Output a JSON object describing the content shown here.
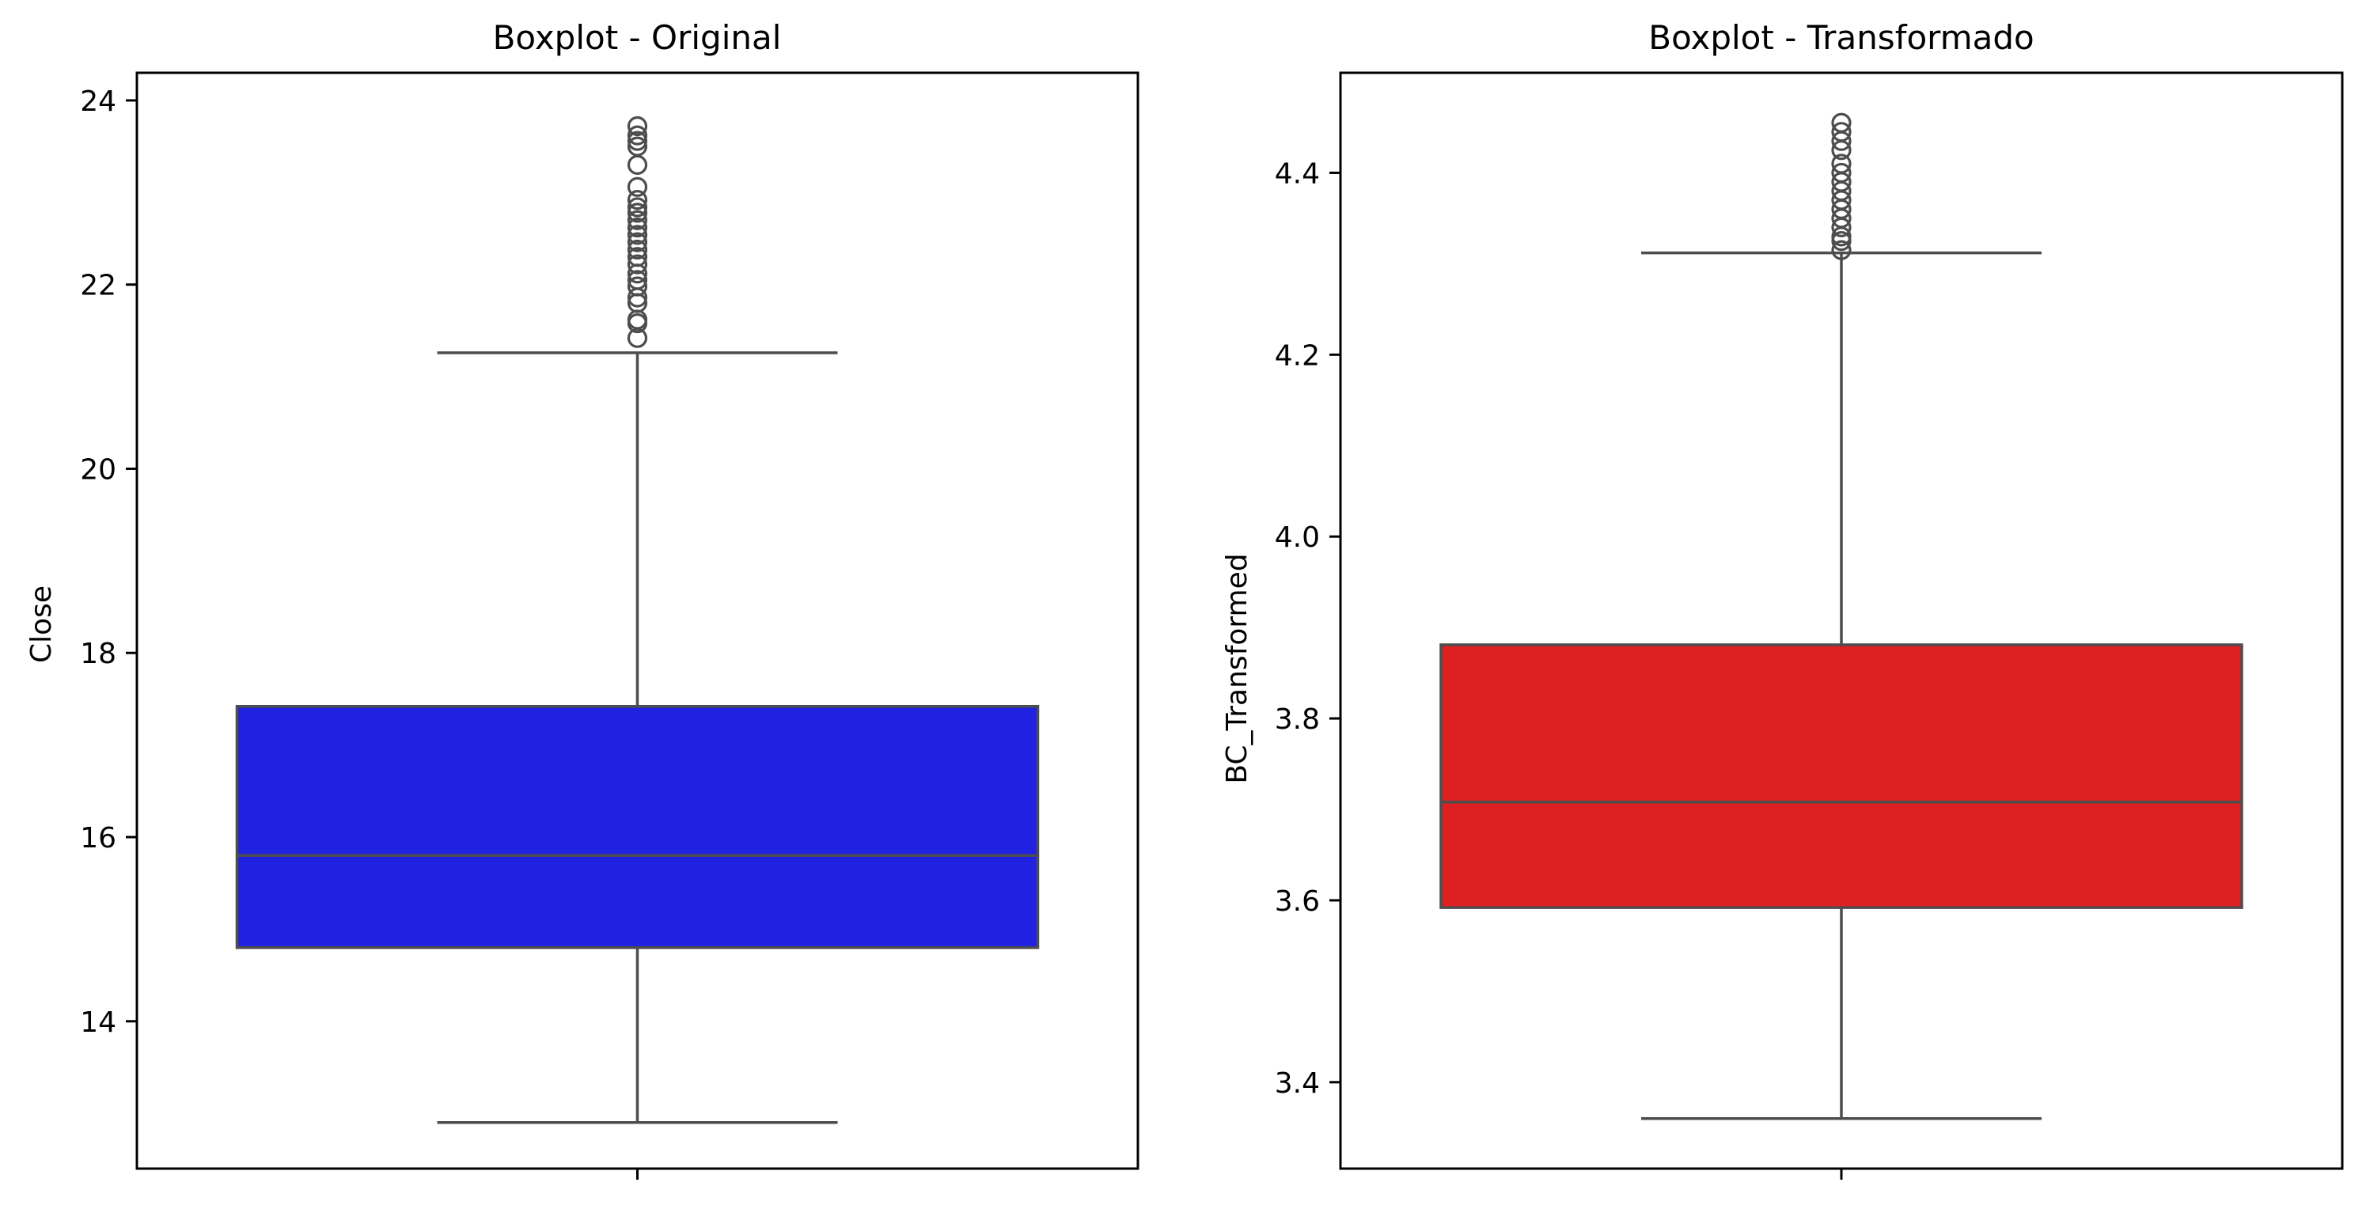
{
  "chart_data": [
    {
      "type": "boxplot",
      "title": "Boxplot - Original",
      "xlabel": "",
      "ylabel": "Close",
      "ylim": [
        12.4,
        24.3
      ],
      "yticks": [
        14,
        16,
        18,
        20,
        22,
        24
      ],
      "ytick_labels": [
        "14",
        "16",
        "18",
        "20",
        "22",
        "24"
      ],
      "box_color": "#2022e2",
      "line_color": "#4d4d4d",
      "grid": false,
      "box": {
        "whisker_low": 12.9,
        "q1": 14.8,
        "median": 15.8,
        "q3": 17.42,
        "whisker_high": 21.26
      },
      "outliers": [
        21.42,
        21.58,
        21.62,
        21.8,
        21.86,
        21.98,
        22.05,
        22.12,
        22.22,
        22.3,
        22.38,
        22.46,
        22.54,
        22.62,
        22.7,
        22.78,
        22.84,
        22.92,
        23.06,
        23.3,
        23.5,
        23.56,
        23.62,
        23.72
      ]
    },
    {
      "type": "boxplot",
      "title": "Boxplot - Transformado",
      "xlabel": "",
      "ylabel": "BC_Transformed",
      "ylim": [
        3.305,
        4.51
      ],
      "yticks": [
        3.4,
        3.6,
        3.8,
        4.0,
        4.2,
        4.4
      ],
      "ytick_labels": [
        "3.4",
        "3.6",
        "3.8",
        "4.0",
        "4.2",
        "4.4"
      ],
      "box_color": "#df2022",
      "line_color": "#4d4d4d",
      "grid": false,
      "box": {
        "whisker_low": 3.36,
        "q1": 3.592,
        "median": 3.708,
        "q3": 3.881,
        "whisker_high": 4.312
      },
      "outliers": [
        4.315,
        4.325,
        4.33,
        4.34,
        4.35,
        4.36,
        4.37,
        4.38,
        4.39,
        4.4,
        4.41,
        4.425,
        4.435,
        4.445,
        4.455
      ]
    }
  ]
}
